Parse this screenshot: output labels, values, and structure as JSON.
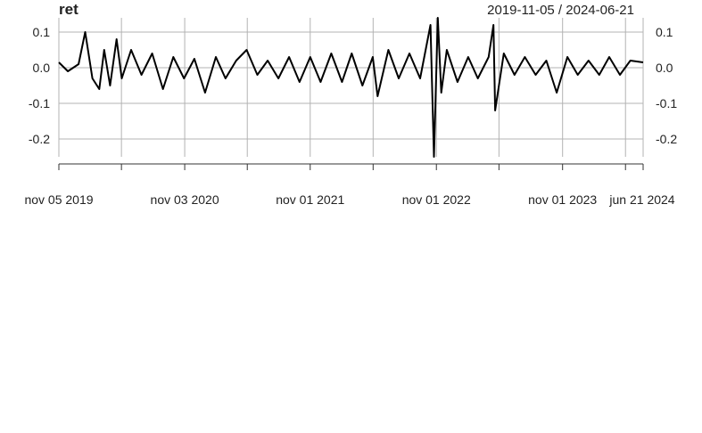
{
  "chart_data": {
    "type": "line",
    "title": "ret",
    "date_range_label": "2019-11-05 / 2024-06-21",
    "x_range": [
      "2019-11-05",
      "2024-06-21"
    ],
    "ylim": [
      -0.25,
      0.14
    ],
    "y_ticks": [
      0.1,
      0.0,
      -0.1,
      -0.2
    ],
    "y_tick_labels": [
      "0.1",
      "0.0",
      "-0.1",
      "-0.2"
    ],
    "x_ticks": [
      "2019-11-05",
      "2020-05-04",
      "2020-11-03",
      "2021-05-03",
      "2021-11-01",
      "2022-05-02",
      "2022-11-01",
      "2023-05-01",
      "2023-11-01",
      "2024-05-01",
      "2024-06-21"
    ],
    "x_tick_labels": [
      {
        "date": "2019-11-05",
        "label": "nov 05 2019"
      },
      {
        "date": "2020-11-03",
        "label": "nov 03 2020"
      },
      {
        "date": "2021-11-01",
        "label": "nov 01 2021"
      },
      {
        "date": "2022-11-01",
        "label": "nov 01 2022"
      },
      {
        "date": "2023-11-01",
        "label": "nov 01 2023"
      },
      {
        "date": "2024-06-21",
        "label": "jun 21 2024"
      }
    ],
    "grid": true,
    "series": [
      {
        "color": "#000000",
        "points": [
          [
            "2019-11-05",
            0.015
          ],
          [
            "2019-12-01",
            -0.01
          ],
          [
            "2020-01-01",
            0.01
          ],
          [
            "2020-01-20",
            0.1
          ],
          [
            "2020-02-10",
            -0.03
          ],
          [
            "2020-03-01",
            -0.06
          ],
          [
            "2020-03-15",
            0.05
          ],
          [
            "2020-04-01",
            -0.05
          ],
          [
            "2020-04-20",
            0.08
          ],
          [
            "2020-05-05",
            -0.03
          ],
          [
            "2020-06-01",
            0.05
          ],
          [
            "2020-07-01",
            -0.02
          ],
          [
            "2020-08-01",
            0.04
          ],
          [
            "2020-09-01",
            -0.06
          ],
          [
            "2020-10-01",
            0.03
          ],
          [
            "2020-11-01",
            -0.03
          ],
          [
            "2020-12-01",
            0.025
          ],
          [
            "2021-01-01",
            -0.07
          ],
          [
            "2021-02-01",
            0.03
          ],
          [
            "2021-03-01",
            -0.03
          ],
          [
            "2021-04-01",
            0.02
          ],
          [
            "2021-05-01",
            0.05
          ],
          [
            "2021-06-01",
            -0.02
          ],
          [
            "2021-07-01",
            0.02
          ],
          [
            "2021-08-01",
            -0.03
          ],
          [
            "2021-09-01",
            0.03
          ],
          [
            "2021-10-01",
            -0.04
          ],
          [
            "2021-11-01",
            0.03
          ],
          [
            "2021-12-01",
            -0.04
          ],
          [
            "2022-01-01",
            0.04
          ],
          [
            "2022-02-01",
            -0.04
          ],
          [
            "2022-03-01",
            0.04
          ],
          [
            "2022-04-01",
            -0.05
          ],
          [
            "2022-05-01",
            0.03
          ],
          [
            "2022-05-15",
            -0.08
          ],
          [
            "2022-06-15",
            0.05
          ],
          [
            "2022-07-15",
            -0.03
          ],
          [
            "2022-08-15",
            0.04
          ],
          [
            "2022-09-15",
            -0.03
          ],
          [
            "2022-10-15",
            0.12
          ],
          [
            "2022-10-25",
            -0.25
          ],
          [
            "2022-11-05",
            0.14
          ],
          [
            "2022-11-15",
            -0.07
          ],
          [
            "2022-12-01",
            0.05
          ],
          [
            "2023-01-01",
            -0.04
          ],
          [
            "2023-02-01",
            0.03
          ],
          [
            "2023-03-01",
            -0.03
          ],
          [
            "2023-04-01",
            0.03
          ],
          [
            "2023-04-15",
            0.12
          ],
          [
            "2023-04-20",
            -0.12
          ],
          [
            "2023-05-15",
            0.04
          ],
          [
            "2023-06-15",
            -0.02
          ],
          [
            "2023-07-15",
            0.03
          ],
          [
            "2023-08-15",
            -0.02
          ],
          [
            "2023-09-15",
            0.02
          ],
          [
            "2023-10-15",
            -0.07
          ],
          [
            "2023-11-15",
            0.03
          ],
          [
            "2023-12-15",
            -0.02
          ],
          [
            "2024-01-15",
            0.02
          ],
          [
            "2024-02-15",
            -0.02
          ],
          [
            "2024-03-15",
            0.03
          ],
          [
            "2024-04-15",
            -0.02
          ],
          [
            "2024-05-15",
            0.02
          ],
          [
            "2024-06-21",
            0.015
          ]
        ]
      }
    ]
  }
}
